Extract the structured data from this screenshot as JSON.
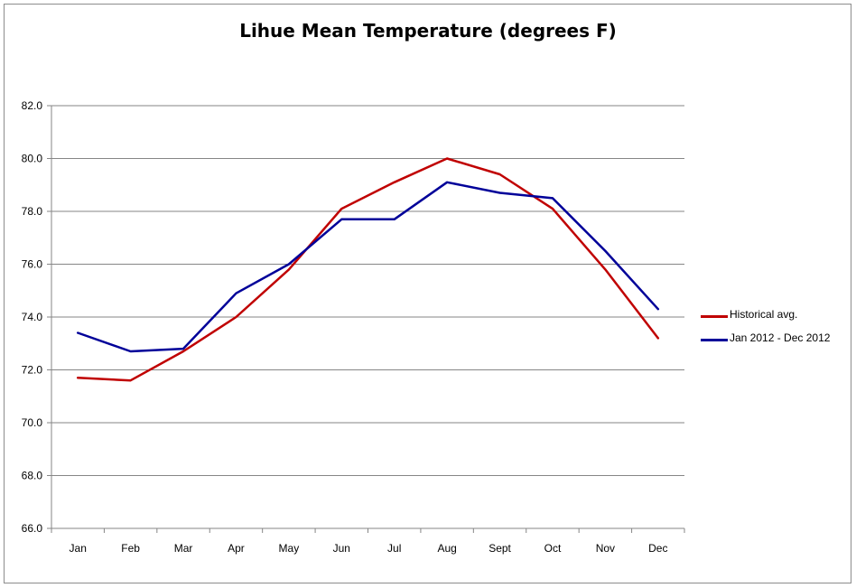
{
  "chart_data": {
    "type": "line",
    "title": "Lihue Mean Temperature (degrees F)",
    "xlabel": "",
    "ylabel": "",
    "categories": [
      "Jan",
      "Feb",
      "Mar",
      "Apr",
      "May",
      "Jun",
      "Jul",
      "Aug",
      "Sept",
      "Oct",
      "Nov",
      "Dec"
    ],
    "ylim": [
      66.0,
      82.0
    ],
    "yticks": [
      "66.0",
      "68.0",
      "70.0",
      "72.0",
      "74.0",
      "76.0",
      "78.0",
      "80.0",
      "82.0"
    ],
    "grid": true,
    "legend_position": "right",
    "series": [
      {
        "name": "Historical avg.",
        "color": "#c00000",
        "values": [
          71.7,
          71.6,
          72.7,
          74.0,
          75.8,
          78.1,
          79.1,
          80.0,
          79.4,
          78.1,
          75.8,
          73.2
        ]
      },
      {
        "name": "Jan 2012 - Dec 2012",
        "color": "#000099",
        "values": [
          73.4,
          72.7,
          72.8,
          74.9,
          76.0,
          77.7,
          77.7,
          79.1,
          78.7,
          78.5,
          76.5,
          74.3
        ]
      }
    ]
  }
}
